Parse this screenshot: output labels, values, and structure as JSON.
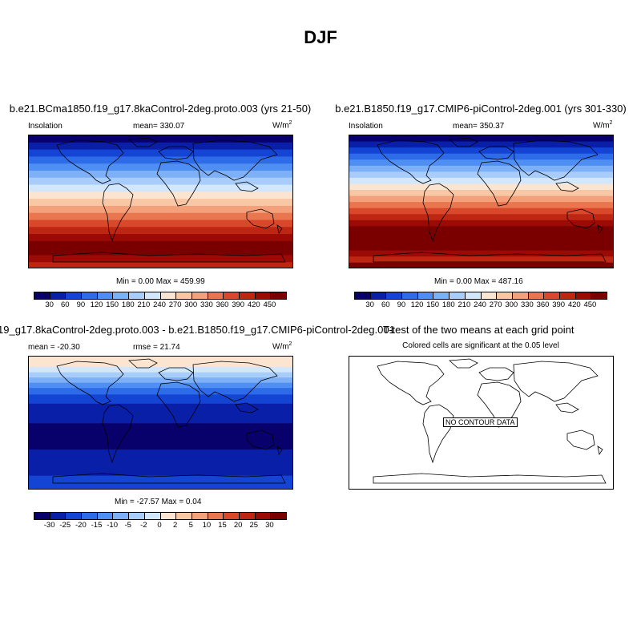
{
  "main_title": "DJF",
  "panels": {
    "top_left": {
      "title": "b.e21.BCma1850.f19_g17.8kaControl-2deg.proto.003 (yrs 21-50)",
      "left_label": "Insolation",
      "center_label": "mean= 330.07",
      "units": "W/m",
      "units_sup": "2",
      "minmax": "Min =   0.00 Max = 459.99",
      "legend_labels": [
        "30",
        "60",
        "90",
        "120",
        "150",
        "180",
        "210",
        "240",
        "270",
        "300",
        "330",
        "360",
        "390",
        "420",
        "450"
      ]
    },
    "top_right": {
      "title": "b.e21.B1850.f19_g17.CMIP6-piControl-2deg.001 (yrs 301-330)",
      "left_label": "Insolation",
      "center_label": "mean= 350.37",
      "units": "W/m",
      "units_sup": "2",
      "minmax": "Min =   0.00 Max = 487.16",
      "legend_labels": [
        "30",
        "60",
        "90",
        "120",
        "150",
        "180",
        "210",
        "240",
        "270",
        "300",
        "330",
        "360",
        "390",
        "420",
        "450"
      ]
    },
    "bottom_left": {
      "title": "19_g17.8kaControl-2deg.proto.003 - b.e21.B1850.f19_g17.CMIP6-piControl-2deg.001",
      "left_label": "mean = -20.30",
      "center_label": "rmse =  21.74",
      "units": "W/m",
      "units_sup": "2",
      "minmax": "Min = -27.57 Max =   0.04",
      "legend_labels": [
        "-30",
        "-25",
        "-20",
        "-15",
        "-10",
        "-5",
        "-2",
        "0",
        "2",
        "5",
        "10",
        "15",
        "20",
        "25",
        "30"
      ]
    },
    "bottom_right": {
      "title": "T-test of the two means at each grid point",
      "subtitle": "Colored cells are significant at the 0.05 level",
      "no_data": "NO CONTOUR DATA"
    }
  },
  "colors": {
    "seq_palette": [
      "#08006b",
      "#0a1fa8",
      "#1444d4",
      "#2d6be8",
      "#4f8ef2",
      "#7eb0f7",
      "#a9cdfa",
      "#d2e6fc",
      "#fbe5d0",
      "#f8c7a6",
      "#f4a07a",
      "#ea7650",
      "#d9482a",
      "#bc2612",
      "#9c0a06",
      "#7a0000"
    ],
    "div_palette": [
      "#08006b",
      "#0a1fa8",
      "#1444d4",
      "#2d6be8",
      "#4f8ef2",
      "#7eb0f7",
      "#a9cdfa",
      "#d2e6fc",
      "#fbe5d0",
      "#f8c7a6",
      "#f4a07a",
      "#ea7650",
      "#d9482a",
      "#bc2612",
      "#9c0a06",
      "#7a0000"
    ]
  },
  "map_bands": {
    "top_left": [
      [
        0,
        13
      ],
      [
        1,
        13
      ],
      [
        2,
        13
      ],
      [
        3,
        13
      ],
      [
        4,
        13
      ],
      [
        5,
        13
      ],
      [
        6,
        13
      ],
      [
        7,
        13
      ],
      [
        8,
        13
      ],
      [
        9,
        13
      ],
      [
        10,
        13
      ],
      [
        11,
        13
      ],
      [
        12,
        13
      ],
      [
        13,
        13
      ],
      [
        14,
        13
      ],
      [
        15,
        13
      ],
      [
        15,
        13
      ],
      [
        14,
        13
      ],
      [
        13,
        10
      ]
    ],
    "top_right": [
      [
        0,
        12
      ],
      [
        1,
        12
      ],
      [
        2,
        12
      ],
      [
        3,
        12
      ],
      [
        4,
        12
      ],
      [
        5,
        12
      ],
      [
        6,
        12
      ],
      [
        7,
        12
      ],
      [
        8,
        12
      ],
      [
        9,
        12
      ],
      [
        10,
        12
      ],
      [
        11,
        12
      ],
      [
        12,
        12
      ],
      [
        13,
        12
      ],
      [
        14,
        12
      ],
      [
        15,
        12
      ],
      [
        15,
        12
      ],
      [
        15,
        12
      ],
      [
        15,
        12
      ],
      [
        14,
        12
      ],
      [
        13,
        12
      ],
      [
        15,
        10
      ]
    ],
    "bottom_left": [
      [
        8,
        16
      ],
      [
        7,
        8
      ],
      [
        6,
        8
      ],
      [
        5,
        8
      ],
      [
        4,
        8
      ],
      [
        3,
        10
      ],
      [
        2,
        14
      ],
      [
        1,
        30
      ],
      [
        0,
        40
      ],
      [
        1,
        40
      ],
      [
        2,
        20
      ]
    ]
  }
}
